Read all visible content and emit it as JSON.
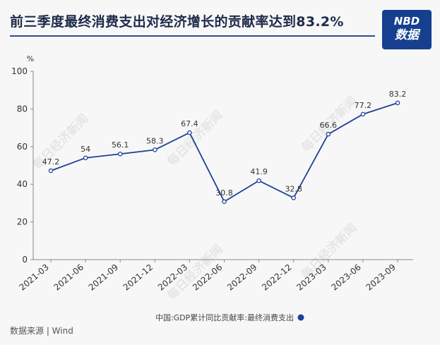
{
  "header": {
    "title": "前三季度最终消费支出对经济增长的贡献率达到83.2%",
    "logo_line1": "NBD",
    "logo_line2": "数据"
  },
  "source": "数据来源 | Wind",
  "watermark": "每日经济新闻",
  "colors": {
    "line": "#1f3f99",
    "rule": "#2f4e95",
    "logo_bg": "#163f8f"
  },
  "chart_data": {
    "type": "line",
    "ylabel": "%",
    "ylim": [
      0,
      100
    ],
    "yticks": [
      0,
      20,
      40,
      60,
      80,
      100
    ],
    "categories": [
      "2021-03",
      "2021-06",
      "2021-09",
      "2021-12",
      "2022-03",
      "2022-06",
      "2022-09",
      "2022-12",
      "2023-03",
      "2023-06",
      "2023-09"
    ],
    "series": [
      {
        "name": "中国:GDP累计同比贡献率:最终消费支出",
        "values": [
          47.2,
          54,
          56.1,
          58.3,
          67.4,
          30.8,
          41.9,
          32.8,
          66.6,
          77.2,
          83.2
        ]
      }
    ],
    "grid": false,
    "legend": "bottom"
  }
}
